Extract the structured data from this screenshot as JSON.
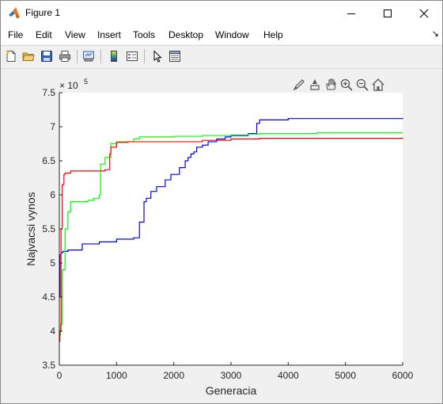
{
  "window": {
    "title": "Figure 1",
    "icon": "matlab-icon",
    "controls": [
      "minimize-icon",
      "maximize-icon",
      "close-icon"
    ]
  },
  "menu": {
    "items": [
      "File",
      "Edit",
      "View",
      "Insert",
      "Tools",
      "Desktop",
      "Window",
      "Help"
    ],
    "dock_arrow": "↘"
  },
  "toolbar": {
    "buttons": [
      "new-figure-icon",
      "open-file-icon",
      "save-icon",
      "print-icon",
      "link-plot-icon",
      "insert-colorbar-icon",
      "insert-legend-icon",
      "edit-plot-icon",
      "property-inspector-icon"
    ]
  },
  "axes_toolbar": {
    "buttons": [
      "brush-icon",
      "data-cursor-icon",
      "pan-icon",
      "zoom-in-icon",
      "zoom-out-icon",
      "home-icon"
    ]
  },
  "chart_data": {
    "type": "line",
    "xlabel": "Generacia",
    "ylabel": "Najvacsi vynos",
    "xlim": [
      0,
      6000
    ],
    "ylim": [
      3.5,
      7.5
    ],
    "y_exponent_label": "× 10",
    "y_exponent": "5",
    "xticks": [
      "0",
      "1000",
      "2000",
      "3000",
      "4000",
      "5000",
      "6000"
    ],
    "yticks": [
      "3.5",
      "4",
      "4.5",
      "5",
      "5.5",
      "6",
      "6.5",
      "7",
      "7.5"
    ],
    "grid": false,
    "series": [
      {
        "color": "#0000ff",
        "points": [
          [
            0,
            4.5
          ],
          [
            10,
            5.12
          ],
          [
            30,
            5.15
          ],
          [
            60,
            5.17
          ],
          [
            150,
            5.19
          ],
          [
            400,
            5.28
          ],
          [
            700,
            5.31
          ],
          [
            1000,
            5.35
          ],
          [
            1300,
            5.37
          ],
          [
            1400,
            5.6
          ],
          [
            1480,
            5.9
          ],
          [
            1520,
            5.95
          ],
          [
            1600,
            6.05
          ],
          [
            1700,
            6.12
          ],
          [
            1850,
            6.22
          ],
          [
            1950,
            6.3
          ],
          [
            2100,
            6.4
          ],
          [
            2200,
            6.5
          ],
          [
            2250,
            6.55
          ],
          [
            2300,
            6.6
          ],
          [
            2350,
            6.63
          ],
          [
            2400,
            6.7
          ],
          [
            2500,
            6.73
          ],
          [
            2600,
            6.78
          ],
          [
            2750,
            6.82
          ],
          [
            2900,
            6.85
          ],
          [
            3000,
            6.87
          ],
          [
            3300,
            6.9
          ],
          [
            3450,
            7.05
          ],
          [
            3500,
            7.1
          ],
          [
            4000,
            7.12
          ],
          [
            6000,
            7.13
          ]
        ]
      },
      {
        "color": "#00ff00",
        "points": [
          [
            0,
            3.95
          ],
          [
            20,
            4.1
          ],
          [
            50,
            4.9
          ],
          [
            100,
            5.5
          ],
          [
            150,
            5.75
          ],
          [
            200,
            5.9
          ],
          [
            500,
            5.92
          ],
          [
            600,
            5.95
          ],
          [
            700,
            6.0
          ],
          [
            720,
            6.45
          ],
          [
            800,
            6.55
          ],
          [
            900,
            6.75
          ],
          [
            1000,
            6.78
          ],
          [
            1300,
            6.82
          ],
          [
            1400,
            6.85
          ],
          [
            2000,
            6.86
          ],
          [
            2500,
            6.87
          ],
          [
            3000,
            6.88
          ],
          [
            3300,
            6.89
          ],
          [
            3500,
            6.9
          ],
          [
            4500,
            6.91
          ],
          [
            6000,
            6.91
          ]
        ]
      },
      {
        "color": "#ff0000",
        "points": [
          [
            0,
            3.85
          ],
          [
            10,
            4.0
          ],
          [
            30,
            5.5
          ],
          [
            50,
            6.15
          ],
          [
            80,
            6.3
          ],
          [
            100,
            6.32
          ],
          [
            200,
            6.35
          ],
          [
            800,
            6.37
          ],
          [
            880,
            6.6
          ],
          [
            900,
            6.7
          ],
          [
            1000,
            6.77
          ],
          [
            1200,
            6.78
          ],
          [
            2000,
            6.78
          ],
          [
            2500,
            6.8
          ],
          [
            3000,
            6.82
          ],
          [
            3500,
            6.83
          ],
          [
            6000,
            6.84
          ]
        ]
      }
    ]
  }
}
